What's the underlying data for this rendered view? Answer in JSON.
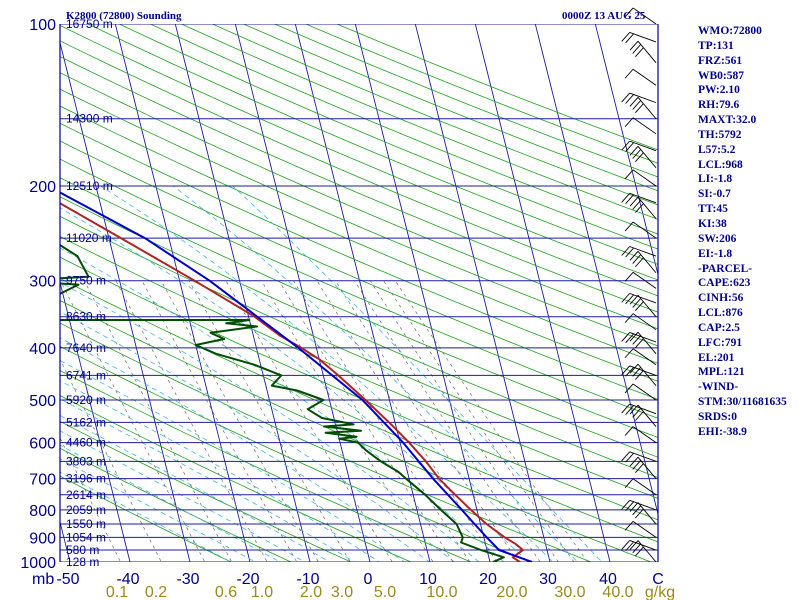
{
  "header": {
    "station": "K2800 (72800) Sounding",
    "time": "0000Z 13 AUG 25"
  },
  "indices": [
    "WMO:72800",
    "TP:131",
    "FRZ:561",
    "WB0:587",
    "PW:2.10",
    "RH:79.6",
    "MAXT:32.0",
    "TH:5792",
    "L57:5.2",
    "LCL:968",
    "LI:-1.8",
    "SI:-0.7",
    "TT:45",
    "KI:38",
    "SW:206",
    "EI:-1.8",
    "-PARCEL-",
    "CAPE:623",
    "CINH:56",
    "LCL:876",
    "CAP:2.5",
    "LFC:791",
    "EL:201",
    "MPL:121",
    "-WIND-",
    "STM:30/11681635",
    "SRDS:0",
    "EHI:-38.9"
  ],
  "chart_data": {
    "type": "line",
    "title": "K2800 (72800) Sounding",
    "subtitle": "0000Z 13 AUG 25",
    "y_axis": {
      "unit": "mb",
      "scale": "log",
      "range": [
        1000,
        100
      ],
      "ticks": [
        100,
        200,
        300,
        400,
        500,
        600,
        700,
        800,
        900,
        1000
      ]
    },
    "x_axis": {
      "unit": "C",
      "range": [
        -50,
        50
      ],
      "skewed": true,
      "ticks": [
        -50,
        -40,
        -30,
        -20,
        -10,
        0,
        10,
        20,
        30,
        40
      ]
    },
    "mixing_ratio_axis": {
      "unit": "g/kg",
      "ticks": [
        "0.1",
        "0.2",
        "0.6",
        "1.0",
        "2.0",
        "3.0",
        "5.0",
        "10.0",
        "20.0",
        "30.0",
        "40.0"
      ]
    },
    "height_labels": [
      {
        "p": 100,
        "label": "16750 m"
      },
      {
        "p": 150,
        "label": "14300 m"
      },
      {
        "p": 200,
        "label": "12510 m"
      },
      {
        "p": 250,
        "label": "11020 m"
      },
      {
        "p": 300,
        "label": "9750 m"
      },
      {
        "p": 350,
        "label": "8630 m"
      },
      {
        "p": 400,
        "label": "7640 m"
      },
      {
        "p": 450,
        "label": "6741 m"
      },
      {
        "p": 500,
        "label": "5920 m"
      },
      {
        "p": 550,
        "label": "5162 m"
      },
      {
        "p": 600,
        "label": "4460 m"
      },
      {
        "p": 650,
        "label": "3803 m"
      },
      {
        "p": 700,
        "label": "3196 m"
      },
      {
        "p": 750,
        "label": "2614 m"
      },
      {
        "p": 800,
        "label": "2059 m"
      },
      {
        "p": 850,
        "label": "1550 m"
      },
      {
        "p": 900,
        "label": "1054 m"
      },
      {
        "p": 950,
        "label": "580 m"
      },
      {
        "p": 1000,
        "label": "128 m"
      }
    ],
    "series": [
      {
        "color": "#b22222",
        "points": [
          [
            1000,
            25
          ],
          [
            980,
            24
          ],
          [
            950,
            26
          ],
          [
            925,
            25
          ],
          [
            900,
            23.5
          ],
          [
            850,
            21
          ],
          [
            800,
            19
          ],
          [
            750,
            17
          ],
          [
            700,
            15
          ],
          [
            650,
            13.5
          ],
          [
            600,
            11.5
          ],
          [
            550,
            9
          ],
          [
            500,
            6
          ],
          [
            450,
            2.5
          ],
          [
            420,
            0
          ],
          [
            400,
            -2.5
          ],
          [
            380,
            -5.5
          ],
          [
            350,
            -9
          ],
          [
            300,
            -17.5
          ],
          [
            250,
            -28
          ],
          [
            200,
            -41
          ],
          [
            175,
            -49
          ],
          [
            150,
            -58
          ],
          [
            130,
            -64
          ],
          [
            125,
            -62
          ],
          [
            115,
            -59
          ],
          [
            100,
            -62
          ]
        ]
      },
      {
        "color": "#0000cd",
        "points": [
          [
            1000,
            27
          ],
          [
            950,
            22
          ],
          [
            900,
            20.5
          ],
          [
            850,
            19
          ],
          [
            800,
            17.5
          ],
          [
            700,
            14
          ],
          [
            600,
            10.5
          ],
          [
            500,
            5.5
          ],
          [
            400,
            -3
          ],
          [
            300,
            -15
          ],
          [
            250,
            -24
          ],
          [
            200,
            -38
          ],
          [
            150,
            -57
          ],
          [
            125,
            -68
          ],
          [
            100,
            -80
          ]
        ]
      },
      {
        "color": "#004d00",
        "points": [
          [
            1000,
            20.5
          ],
          [
            980,
            22.5
          ],
          [
            950,
            19
          ],
          [
            920,
            16
          ],
          [
            900,
            16.5
          ],
          [
            850,
            16
          ],
          [
            800,
            14
          ],
          [
            750,
            12
          ],
          [
            700,
            9.5
          ],
          [
            680,
            8.5
          ],
          [
            650,
            6
          ],
          [
            620,
            4
          ],
          [
            600,
            3
          ],
          [
            590,
            0
          ],
          [
            585,
            3
          ],
          [
            575,
            -2
          ],
          [
            570,
            4
          ],
          [
            565,
            1
          ],
          [
            560,
            -2
          ],
          [
            555,
            3
          ],
          [
            540,
            -2
          ],
          [
            520,
            -4
          ],
          [
            500,
            -1
          ],
          [
            480,
            -5
          ],
          [
            470,
            -9
          ],
          [
            450,
            -7
          ],
          [
            430,
            -11
          ],
          [
            410,
            -17
          ],
          [
            395,
            -20
          ],
          [
            385,
            -15
          ],
          [
            375,
            -17
          ],
          [
            365,
            -9
          ],
          [
            360,
            -14
          ],
          [
            355,
            -10
          ],
          [
            355,
            -63
          ],
          [
            330,
            -44
          ],
          [
            305,
            -37
          ],
          [
            300,
            -48
          ],
          [
            295,
            -35
          ],
          [
            270,
            -36
          ],
          [
            250,
            -40
          ],
          [
            230,
            -44
          ],
          [
            210,
            -50
          ],
          [
            200,
            -55
          ],
          [
            180,
            -53
          ],
          [
            170,
            -60
          ],
          [
            160,
            -66
          ],
          [
            150,
            -68
          ],
          [
            140,
            -67
          ],
          [
            130,
            -71
          ],
          [
            120,
            -73
          ],
          [
            110,
            -72
          ],
          [
            100,
            -63
          ]
        ]
      }
    ]
  }
}
